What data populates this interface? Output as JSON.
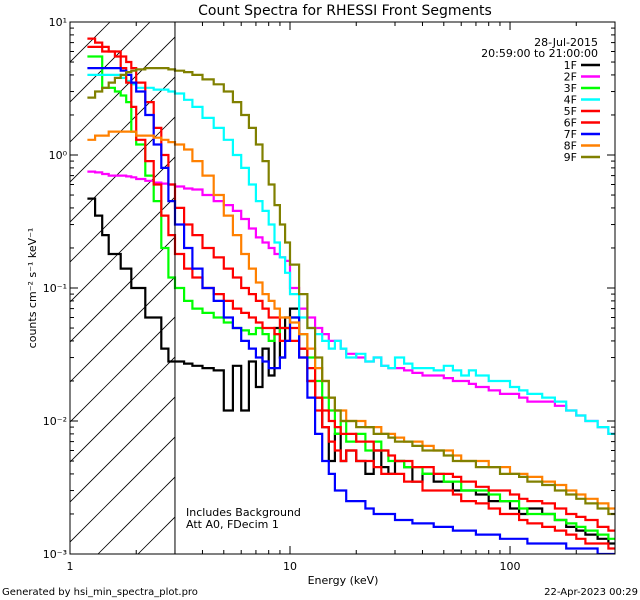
{
  "chart_data": {
    "type": "line",
    "title": "Count Spectra for RHESSI Front Segments",
    "xlabel": "Energy (keV)",
    "ylabel": "counts cm⁻² s⁻¹ keV⁻¹",
    "xscale": "log",
    "yscale": "log",
    "xlim": [
      1,
      300
    ],
    "ylim": [
      0.001,
      10
    ],
    "x_ticks": [
      {
        "value": 1,
        "label": "1"
      },
      {
        "value": 10,
        "label": "10"
      },
      {
        "value": 100,
        "label": "100"
      }
    ],
    "y_ticks": [
      {
        "value": 0.001,
        "label": "10⁻³"
      },
      {
        "value": 0.01,
        "label": "10⁻²"
      },
      {
        "value": 0.1,
        "label": "10⁻¹"
      },
      {
        "value": 1,
        "label": "10⁰"
      },
      {
        "value": 10,
        "label": "10¹"
      }
    ],
    "date_label": "28-Jul-2015",
    "time_range_label": "20:59:00 to 21:00:00",
    "annotation_lines": [
      "Includes Background",
      "Att A0, FDecim 1"
    ],
    "hatched_region_upper_keV": 3,
    "energy_edges": [
      1.2,
      1.3,
      1.4,
      1.5,
      1.6,
      1.7,
      1.8,
      1.9,
      2.0,
      2.2,
      2.4,
      2.6,
      2.8,
      3.0,
      3.3,
      3.6,
      4.0,
      4.5,
      5.0,
      5.5,
      6.0,
      6.5,
      7.0,
      7.5,
      8.0,
      8.5,
      9.0,
      9.5,
      10.0,
      11.0,
      12.0,
      13.0,
      14.0,
      15.0,
      16.0,
      17.0,
      18.0,
      20.0,
      22.0,
      24.0,
      26.0,
      28.0,
      30.0,
      33.0,
      36.0,
      40.0,
      45.0,
      50.0,
      55.0,
      60.0,
      65.0,
      70.0,
      80.0,
      90.0,
      100.0,
      110.0,
      120.0,
      140.0,
      160.0,
      180.0,
      200.0,
      220.0,
      250.0,
      280.0,
      300.0
    ],
    "series": [
      {
        "name": "1F",
        "color": "#000000",
        "values": [
          0.47,
          0.35,
          0.25,
          0.18,
          0.18,
          0.14,
          0.14,
          0.1,
          0.1,
          0.06,
          0.06,
          0.035,
          0.028,
          0.028,
          0.027,
          0.026,
          0.025,
          0.024,
          0.012,
          0.026,
          0.012,
          0.028,
          0.018,
          0.035,
          0.022,
          0.05,
          0.03,
          0.06,
          0.07,
          0.035,
          0.02,
          0.015,
          0.009,
          0.005,
          0.008,
          0.005,
          0.006,
          0.005,
          0.004,
          0.006,
          0.0045,
          0.004,
          0.005,
          0.0045,
          0.0035,
          0.004,
          0.0035,
          0.0035,
          0.003,
          0.003,
          0.003,
          0.0028,
          0.0025,
          0.0025,
          0.0022,
          0.002,
          0.0022,
          0.002,
          0.0018,
          0.0016,
          0.0015,
          0.0014,
          0.0013,
          0.0012
        ]
      },
      {
        "name": "2F",
        "color": "#ff00ff",
        "values": [
          0.75,
          0.74,
          0.72,
          0.7,
          0.7,
          0.7,
          0.69,
          0.68,
          0.66,
          0.64,
          0.62,
          0.61,
          0.6,
          0.58,
          0.56,
          0.55,
          0.5,
          0.45,
          0.42,
          0.38,
          0.33,
          0.28,
          0.24,
          0.22,
          0.2,
          0.18,
          0.17,
          0.16,
          0.1,
          0.07,
          0.06,
          0.05,
          0.045,
          0.04,
          0.04,
          0.035,
          0.032,
          0.03,
          0.028,
          0.03,
          0.026,
          0.025,
          0.025,
          0.024,
          0.023,
          0.022,
          0.022,
          0.021,
          0.02,
          0.02,
          0.019,
          0.018,
          0.017,
          0.016,
          0.016,
          0.015,
          0.014,
          0.014,
          0.013,
          0.012,
          0.011,
          0.01,
          0.009,
          0.008
        ]
      },
      {
        "name": "3F",
        "color": "#00ff00",
        "values": [
          5.5,
          5.5,
          3.2,
          3.2,
          3.0,
          2.8,
          2.5,
          1.5,
          1.2,
          0.7,
          0.45,
          0.2,
          0.12,
          0.1,
          0.08,
          0.07,
          0.065,
          0.06,
          0.055,
          0.05,
          0.048,
          0.045,
          0.05,
          0.045,
          0.04,
          0.045,
          0.05,
          0.05,
          0.06,
          0.045,
          0.03,
          0.02,
          0.015,
          0.012,
          0.008,
          0.01,
          0.007,
          0.008,
          0.006,
          0.007,
          0.006,
          0.005,
          0.005,
          0.0045,
          0.0045,
          0.004,
          0.004,
          0.0035,
          0.0035,
          0.003,
          0.003,
          0.003,
          0.0028,
          0.0025,
          0.0025,
          0.0022,
          0.002,
          0.002,
          0.0018,
          0.0017,
          0.0016,
          0.0015,
          0.0014,
          0.0013
        ]
      },
      {
        "name": "4F",
        "color": "#00ffff",
        "values": [
          4.0,
          4.0,
          4.0,
          4.0,
          4.0,
          3.8,
          3.6,
          3.4,
          3.2,
          3.2,
          3.1,
          3.1,
          3.0,
          2.9,
          2.6,
          2.3,
          1.9,
          1.6,
          1.3,
          1.0,
          0.8,
          0.6,
          0.45,
          0.38,
          0.3,
          0.22,
          0.17,
          0.13,
          0.09,
          0.06,
          0.05,
          0.045,
          0.04,
          0.035,
          0.04,
          0.035,
          0.03,
          0.032,
          0.028,
          0.03,
          0.026,
          0.025,
          0.03,
          0.027,
          0.025,
          0.025,
          0.024,
          0.026,
          0.024,
          0.022,
          0.024,
          0.022,
          0.02,
          0.02,
          0.018,
          0.017,
          0.016,
          0.015,
          0.014,
          0.012,
          0.011,
          0.01,
          0.009,
          0.008
        ]
      },
      {
        "name": "5F",
        "color": "#ff0000",
        "values": [
          6.5,
          6.5,
          6.0,
          6.0,
          5.5,
          4.5,
          3.5,
          2.3,
          1.3,
          0.9,
          0.6,
          0.35,
          0.25,
          0.18,
          0.14,
          0.12,
          0.1,
          0.09,
          0.08,
          0.07,
          0.065,
          0.06,
          0.055,
          0.05,
          0.05,
          0.045,
          0.04,
          0.04,
          0.05,
          0.03,
          0.02,
          0.012,
          0.009,
          0.007,
          0.006,
          0.005,
          0.006,
          0.005,
          0.005,
          0.0045,
          0.004,
          0.004,
          0.004,
          0.0035,
          0.0035,
          0.003,
          0.003,
          0.003,
          0.0028,
          0.0025,
          0.0025,
          0.0024,
          0.0022,
          0.002,
          0.002,
          0.0018,
          0.0017,
          0.0016,
          0.0015,
          0.0014,
          0.0013,
          0.0012,
          0.0012,
          0.0011
        ]
      },
      {
        "name": "6F",
        "color": "#ff0000",
        "values": [
          7.5,
          7.0,
          6.5,
          6.0,
          6.0,
          5.5,
          5.0,
          4.5,
          3.5,
          2.5,
          1.6,
          1.0,
          0.6,
          0.4,
          0.3,
          0.25,
          0.2,
          0.17,
          0.14,
          0.12,
          0.1,
          0.09,
          0.08,
          0.07,
          0.06,
          0.06,
          0.05,
          0.05,
          0.04,
          0.035,
          0.025,
          0.015,
          0.012,
          0.01,
          0.009,
          0.008,
          0.008,
          0.007,
          0.007,
          0.006,
          0.006,
          0.0055,
          0.005,
          0.005,
          0.0045,
          0.0045,
          0.004,
          0.004,
          0.0038,
          0.0035,
          0.0035,
          0.0032,
          0.003,
          0.003,
          0.0028,
          0.0026,
          0.0025,
          0.0024,
          0.0022,
          0.002,
          0.0019,
          0.0018,
          0.0016,
          0.0015
        ]
      },
      {
        "name": "7F",
        "color": "#0000ff",
        "values": [
          4.5,
          4.5,
          4.5,
          4.5,
          4.5,
          4.3,
          4.0,
          3.5,
          3.0,
          2.0,
          1.2,
          0.8,
          0.45,
          0.3,
          0.2,
          0.14,
          0.1,
          0.08,
          0.06,
          0.05,
          0.04,
          0.035,
          0.03,
          0.028,
          0.025,
          0.025,
          0.03,
          0.04,
          0.06,
          0.03,
          0.015,
          0.008,
          0.005,
          0.004,
          0.003,
          0.003,
          0.0025,
          0.0025,
          0.0022,
          0.002,
          0.002,
          0.002,
          0.0018,
          0.0018,
          0.0017,
          0.0017,
          0.0016,
          0.0016,
          0.0015,
          0.0015,
          0.0015,
          0.0014,
          0.0014,
          0.0013,
          0.0013,
          0.0013,
          0.0012,
          0.0012,
          0.0012,
          0.0011,
          0.0011,
          0.0011,
          0.001,
          0.001
        ]
      },
      {
        "name": "8F",
        "color": "#ff8000",
        "values": [
          1.3,
          1.4,
          1.4,
          1.5,
          1.5,
          1.5,
          1.5,
          1.5,
          1.4,
          1.4,
          1.35,
          1.3,
          1.25,
          1.2,
          1.1,
          0.9,
          0.7,
          0.5,
          0.35,
          0.25,
          0.18,
          0.14,
          0.11,
          0.09,
          0.08,
          0.07,
          0.06,
          0.06,
          0.055,
          0.045,
          0.035,
          0.025,
          0.02,
          0.015,
          0.012,
          0.012,
          0.01,
          0.01,
          0.009,
          0.009,
          0.008,
          0.008,
          0.0075,
          0.007,
          0.007,
          0.0065,
          0.006,
          0.006,
          0.0055,
          0.005,
          0.005,
          0.005,
          0.0045,
          0.0045,
          0.004,
          0.004,
          0.0038,
          0.0035,
          0.0033,
          0.003,
          0.0028,
          0.0026,
          0.0024,
          0.0022
        ]
      },
      {
        "name": "9F",
        "color": "#808000",
        "values": [
          2.7,
          3.0,
          3.2,
          3.5,
          3.8,
          4.0,
          4.2,
          4.3,
          4.4,
          4.5,
          4.5,
          4.5,
          4.4,
          4.3,
          4.2,
          4.0,
          3.7,
          3.4,
          3.0,
          2.5,
          2.0,
          1.6,
          1.2,
          0.9,
          0.6,
          0.42,
          0.3,
          0.22,
          0.15,
          0.09,
          0.05,
          0.03,
          0.02,
          0.015,
          0.012,
          0.01,
          0.01,
          0.009,
          0.009,
          0.008,
          0.008,
          0.0075,
          0.007,
          0.007,
          0.0065,
          0.006,
          0.006,
          0.0055,
          0.005,
          0.005,
          0.005,
          0.0045,
          0.0045,
          0.004,
          0.004,
          0.0038,
          0.0035,
          0.0033,
          0.003,
          0.0028,
          0.0026,
          0.0024,
          0.0022,
          0.002
        ]
      }
    ]
  },
  "footer": {
    "generated_by": "Generated by hsi_min_spectra_plot.pro",
    "timestamp": "22-Apr-2023 00:29"
  }
}
